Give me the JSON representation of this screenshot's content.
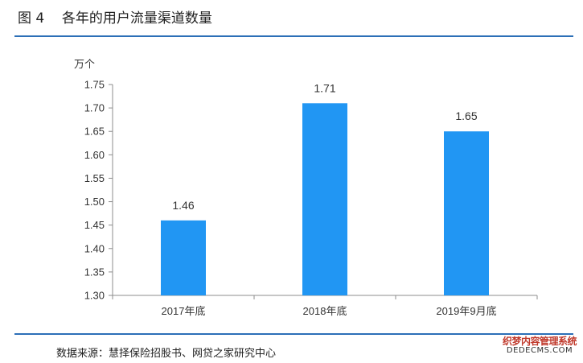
{
  "figure": {
    "title": "图 4    各年的用户流量渠道数量",
    "source": "数据来源：慧择保险招股书、网贷之家研究中心",
    "watermark": {
      "line1": "织梦内容管理系统",
      "line2": "DEDECMS.COM"
    }
  },
  "colors": {
    "bar": "#2196f3",
    "rule": "#2c6fb7",
    "axis": "#8c8c8c"
  },
  "chart_data": {
    "type": "bar",
    "title": "",
    "ylabel": "万个",
    "xlabel": "",
    "categories": [
      "2017年底",
      "2018年底",
      "2019年9月底"
    ],
    "values": [
      1.46,
      1.71,
      1.65
    ],
    "data_labels": [
      "1.46",
      "1.71",
      "1.65"
    ],
    "ylim": [
      1.3,
      1.75
    ],
    "yticks": [
      "1.30",
      "1.35",
      "1.40",
      "1.45",
      "1.50",
      "1.55",
      "1.60",
      "1.65",
      "1.70",
      "1.75"
    ],
    "grid": false,
    "legend": "none"
  }
}
